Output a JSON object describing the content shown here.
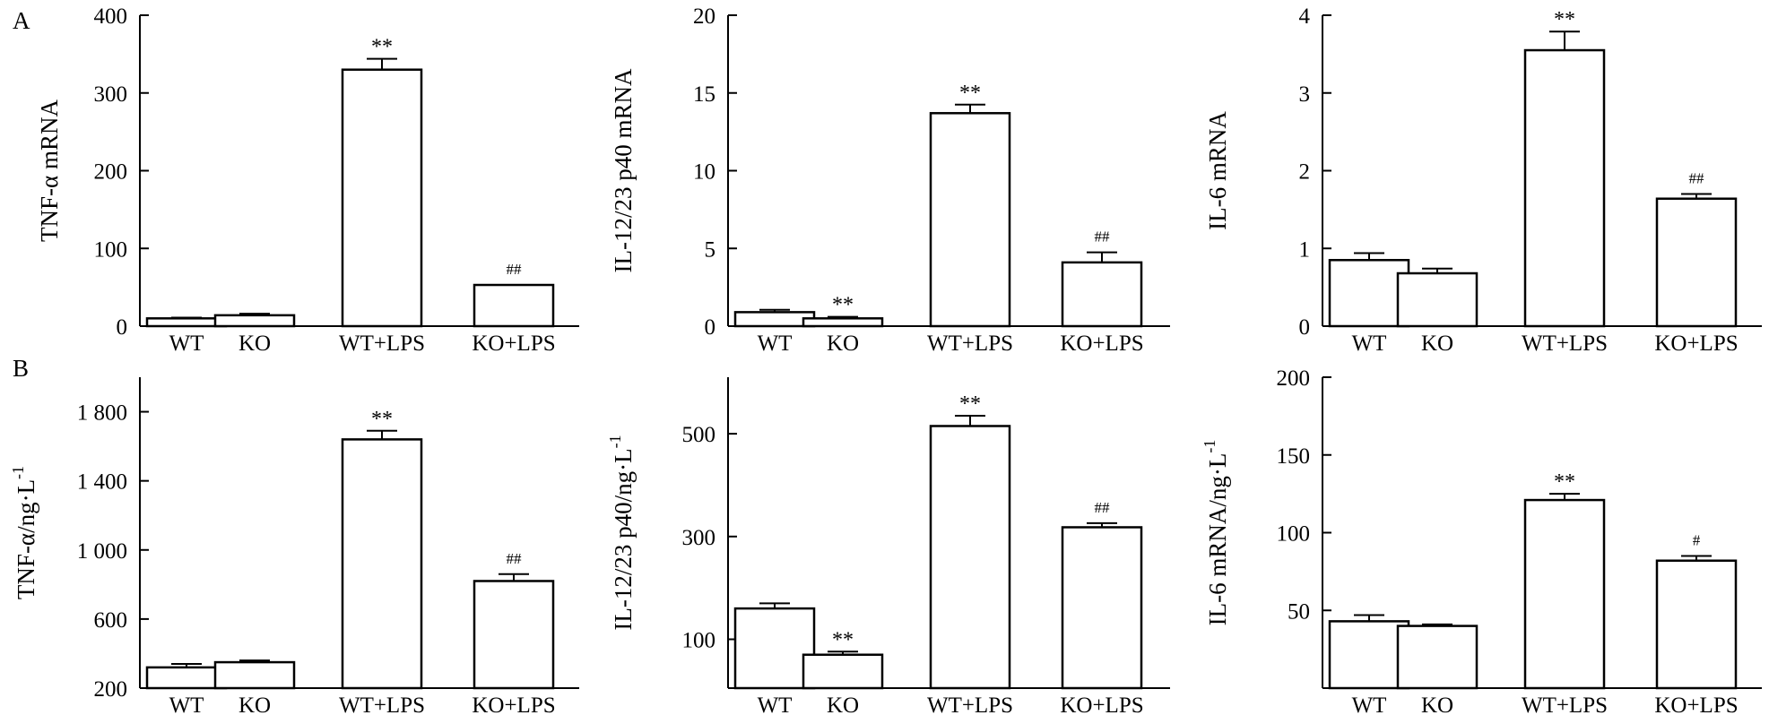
{
  "figure": {
    "panel_labels": [
      "A",
      "B"
    ]
  },
  "chart_data": [
    {
      "type": "bar",
      "panel": "A",
      "ylabel": "TNF-α mRNA",
      "ylabel_sup": "",
      "categories": [
        "WT",
        "KO",
        "WT+LPS",
        "KO+LPS"
      ],
      "values": [
        10,
        14,
        330,
        53
      ],
      "errors": [
        1,
        2,
        14,
        0
      ],
      "annotations": [
        "",
        "",
        "**",
        "##"
      ],
      "ylim": [
        0,
        400
      ],
      "yticks": [
        0,
        100,
        200,
        300,
        400
      ],
      "ytick_labels": [
        "0",
        "100",
        "200",
        "300",
        "400"
      ],
      "grid": false
    },
    {
      "type": "bar",
      "panel": "A",
      "ylabel": "IL-12/23 p40 mRNA",
      "ylabel_sup": "",
      "categories": [
        "WT",
        "KO",
        "WT+LPS",
        "KO+LPS"
      ],
      "values": [
        0.9,
        0.5,
        13.7,
        4.1
      ],
      "errors": [
        0.15,
        0.1,
        0.55,
        0.65
      ],
      "annotations": [
        "",
        "**",
        "**",
        "##"
      ],
      "ylim": [
        0,
        20
      ],
      "yticks": [
        0,
        5,
        10,
        15,
        20
      ],
      "ytick_labels": [
        "0",
        "5",
        "10",
        "15",
        "20"
      ],
      "grid": false
    },
    {
      "type": "bar",
      "panel": "A",
      "ylabel": "IL-6 mRNA",
      "ylabel_sup": "",
      "categories": [
        "WT",
        "KO",
        "WT+LPS",
        "KO+LPS"
      ],
      "values": [
        0.85,
        0.68,
        3.55,
        1.64
      ],
      "errors": [
        0.09,
        0.06,
        0.24,
        0.06
      ],
      "annotations": [
        "",
        "",
        "**",
        "##"
      ],
      "ylim": [
        0,
        4
      ],
      "yticks": [
        0,
        1,
        2,
        3,
        4
      ],
      "ytick_labels": [
        "0",
        "1",
        "2",
        "3",
        "4"
      ],
      "grid": false
    },
    {
      "type": "bar",
      "panel": "B",
      "ylabel": "TNF-α/ng·L",
      "ylabel_sup": "-1",
      "categories": [
        "WT",
        "KO",
        "WT+LPS",
        "KO+LPS"
      ],
      "values": [
        320,
        350,
        1640,
        820
      ],
      "errors": [
        20,
        10,
        50,
        40
      ],
      "annotations": [
        "",
        "",
        "**",
        "##"
      ],
      "ylim": [
        200,
        2000
      ],
      "yticks": [
        200,
        600,
        1000,
        1400,
        1800
      ],
      "ytick_labels": [
        "200",
        "600",
        "1 000",
        "1 400",
        "1 800"
      ],
      "grid": false
    },
    {
      "type": "bar",
      "panel": "B",
      "ylabel": "IL-12/23 p40/ng·L",
      "ylabel_sup": "-1",
      "categories": [
        "WT",
        "KO",
        "WT+LPS",
        "KO+LPS"
      ],
      "values": [
        160,
        70,
        515,
        318
      ],
      "errors": [
        10,
        6,
        20,
        8
      ],
      "annotations": [
        "",
        "**",
        "**",
        "##"
      ],
      "ylim": [
        5,
        610
      ],
      "yticks": [
        100,
        300,
        500
      ],
      "ytick_labels": [
        "100",
        "300",
        "500"
      ],
      "grid": false
    },
    {
      "type": "bar",
      "panel": "B",
      "ylabel": "IL-6 mRNA/ng·L",
      "ylabel_sup": "-1",
      "categories": [
        "WT",
        "KO",
        "WT+LPS",
        "KO+LPS"
      ],
      "values": [
        43,
        40,
        121,
        82
      ],
      "errors": [
        4,
        1,
        4,
        3
      ],
      "annotations": [
        "",
        "",
        "**",
        "#"
      ],
      "ylim": [
        0,
        200
      ],
      "yticks": [
        50,
        100,
        150,
        200
      ],
      "ytick_labels": [
        "50",
        "100",
        "150",
        "200"
      ],
      "grid": false
    }
  ]
}
